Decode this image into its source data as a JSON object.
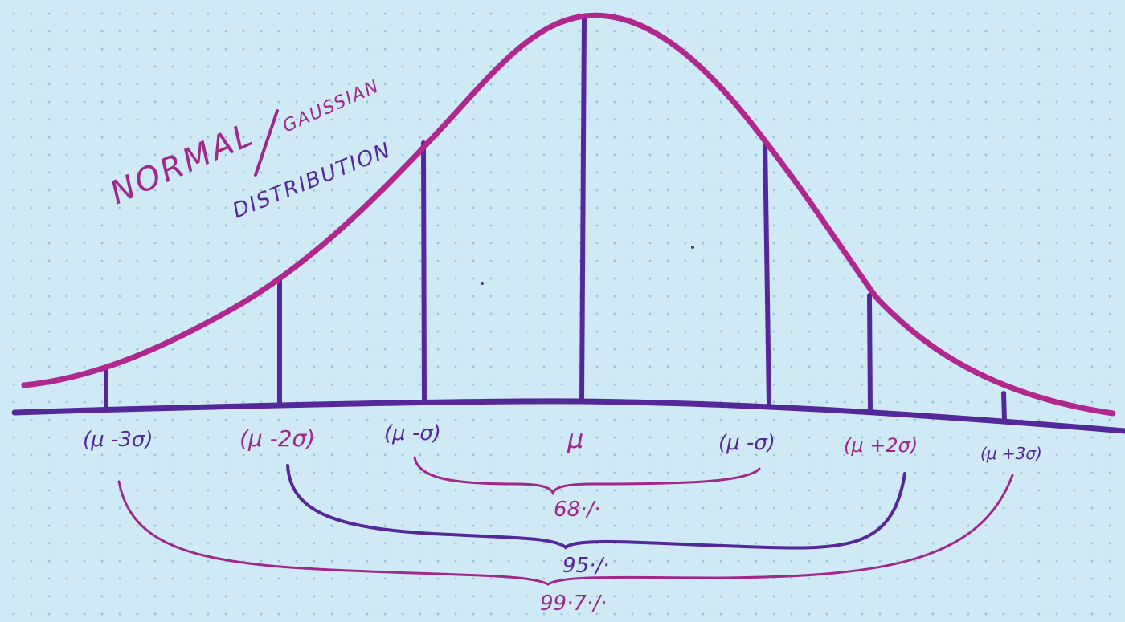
{
  "title": {
    "word1": "NORMAL",
    "word2": "GAUSSIAN",
    "word3": "DISTRIBUTION"
  },
  "axis_labels": [
    {
      "id": "mu-minus-3sigma",
      "text": "(μ -3σ)"
    },
    {
      "id": "mu-minus-2sigma",
      "text": "(μ -2σ)"
    },
    {
      "id": "mu-minus-sigma-left",
      "text": "(μ -σ)"
    },
    {
      "id": "mu",
      "text": "μ"
    },
    {
      "id": "mu-minus-sigma-right",
      "text": "(μ -σ)"
    },
    {
      "id": "mu-plus-2sigma",
      "text": "(μ +2σ)"
    },
    {
      "id": "mu-plus-3sigma",
      "text": "(μ +3σ)"
    }
  ],
  "percentages": {
    "one_sigma": "68·/·",
    "two_sigma": "95·/·",
    "three_sigma": "99·7·/·"
  },
  "colors": {
    "curve": "#b0288e",
    "lines": "#55289a",
    "label_purple": "#55289a",
    "label_magenta": "#a0288a",
    "background": "#cfeaf5"
  }
}
